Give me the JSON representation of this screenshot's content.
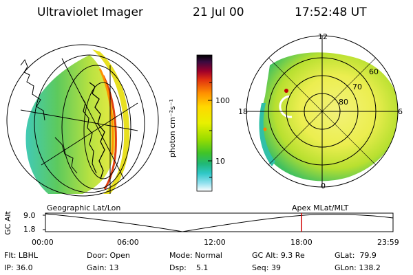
{
  "header": {
    "instrument": "Ultraviolet Imager",
    "date": "21 Jul 00",
    "time": "17:52:48 UT"
  },
  "colorbar": {
    "unit_label": "photon cm⁻²s⁻¹",
    "ticks": [
      "100",
      "10"
    ],
    "colors": [
      "#000000",
      "#5a0a3a",
      "#b00020",
      "#e04010",
      "#ff8c00",
      "#ffd000",
      "#f0f000",
      "#b0e000",
      "#50cc20",
      "#20b840",
      "#20c8b0",
      "#60d8e8",
      "#d8f4f8"
    ]
  },
  "left_panel": {
    "projection_label": "Geographic Lat/Lon"
  },
  "right_panel": {
    "projection_label": "Apex MLat/MLT",
    "mlt_labels": {
      "top": "12",
      "left": "18",
      "right": "6",
      "bottom": "0"
    },
    "lat_labels": [
      "60",
      "70",
      "80"
    ]
  },
  "altitude_plot": {
    "ylabel": "GC Alt",
    "yticks": [
      "9.0",
      "1.8"
    ],
    "xticks": [
      "00:00",
      "06:00",
      "12:00",
      "18:00",
      "23:59"
    ],
    "marker_color": "#d00000"
  },
  "info": {
    "filter_label": "Flt:",
    "filter_value": "LBHL",
    "ip_label": "IP:",
    "ip_value": "36.0",
    "door_label": "Door:",
    "door_value": "Open",
    "gain_label": "Gain:",
    "gain_value": "13",
    "mode_label": "Mode:",
    "mode_value": "Normal",
    "dsp_label": "Dsp:",
    "dsp_value": "5.1",
    "gcalt_label": "GC Alt:",
    "gcalt_value": "9.3 Re",
    "seq_label": "Seq:",
    "seq_value": "39",
    "glat_label": "GLat:",
    "glat_value": "79.9",
    "glon_label": "GLon:",
    "glon_value": "138.2"
  }
}
